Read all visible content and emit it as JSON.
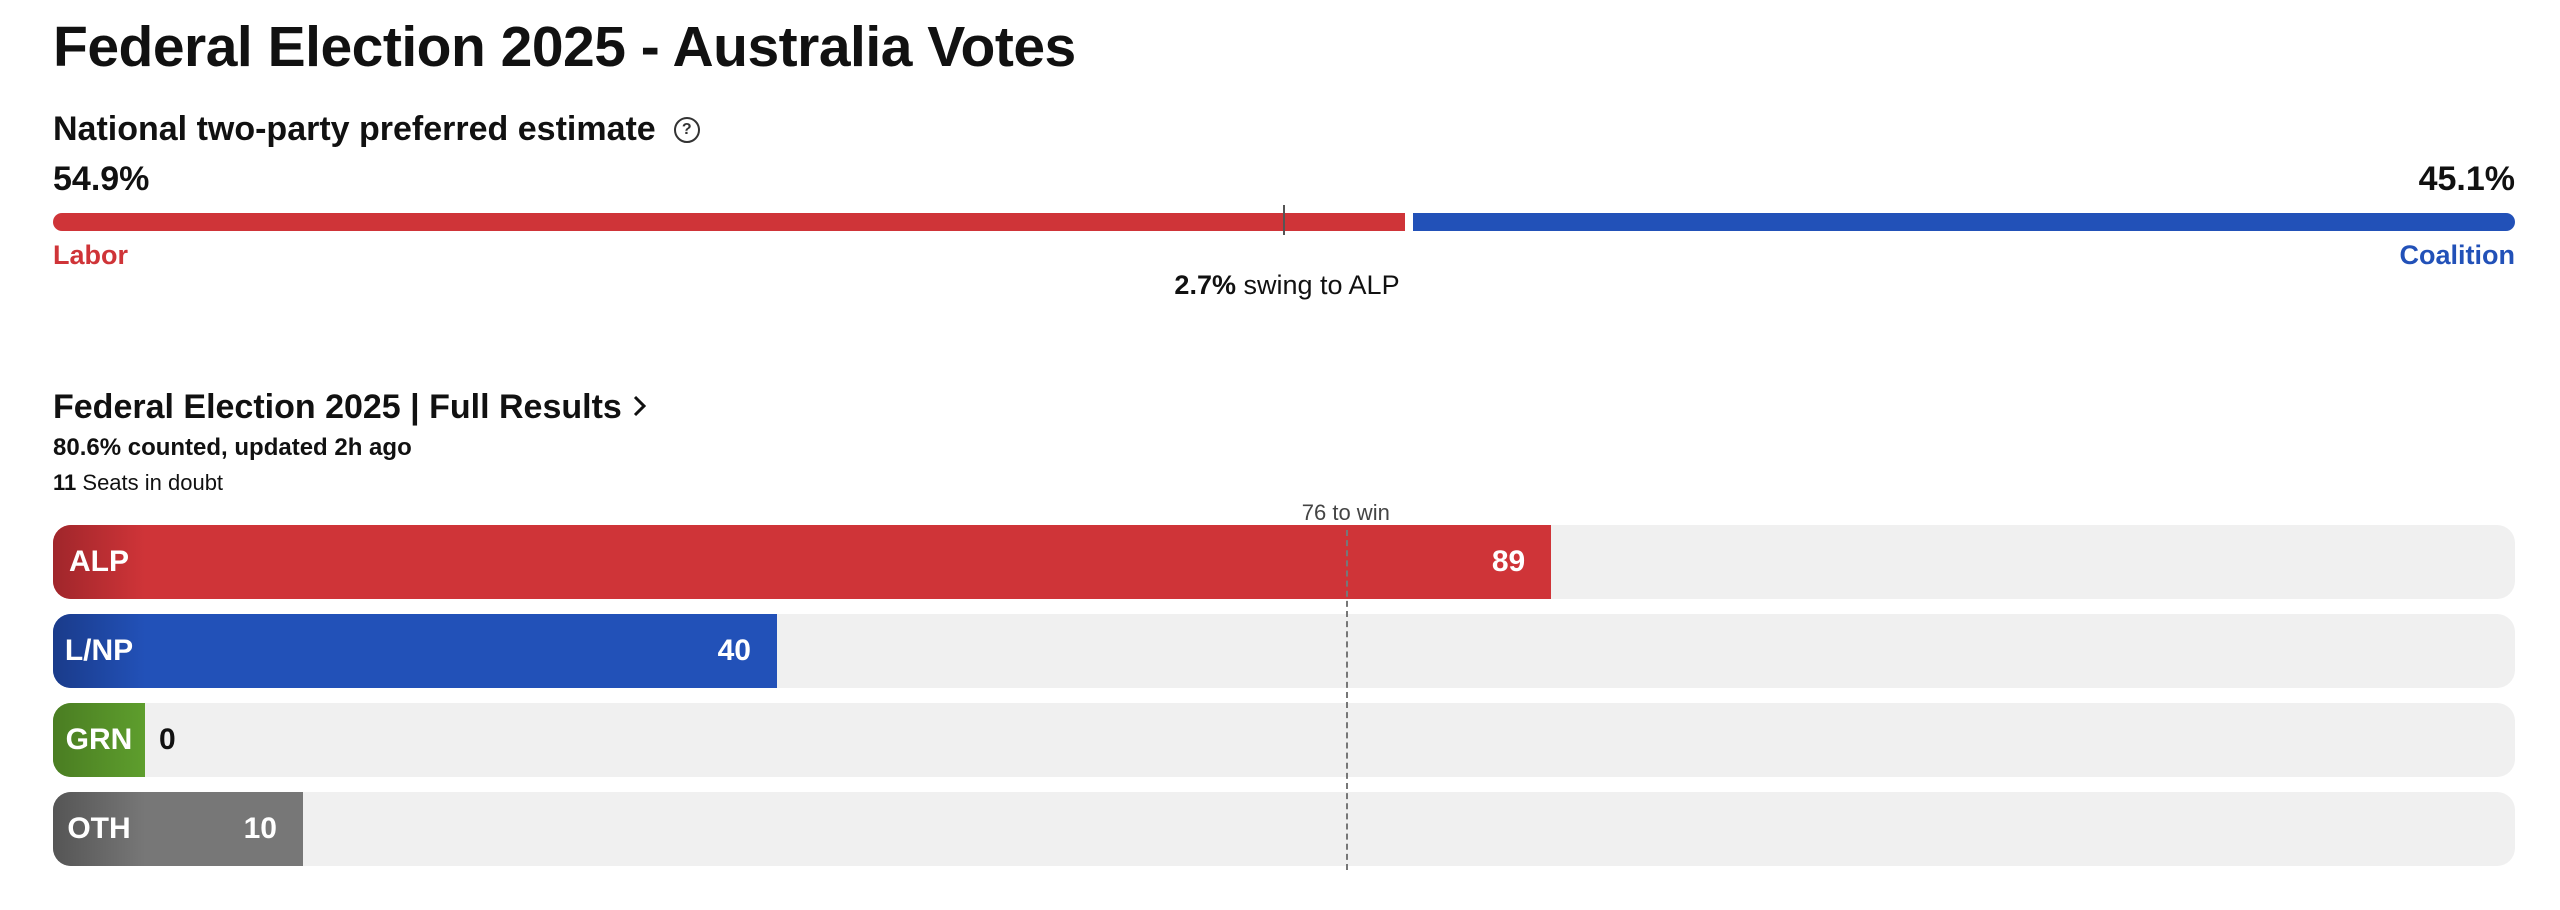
{
  "page": {
    "title": "Federal Election 2025 - Australia Votes"
  },
  "tpp": {
    "heading": "National two-party preferred estimate",
    "help_icon": "question-circle-icon",
    "left": {
      "party": "Labor",
      "value": "54.9%",
      "share": 54.9,
      "color": "#cf3438"
    },
    "right": {
      "party": "Coalition",
      "value": "45.1%",
      "share": 45.1,
      "color": "#2251b8"
    },
    "midpoint": 50,
    "swing": {
      "value": "2.7%",
      "text": "swing to ALP"
    }
  },
  "results": {
    "heading": "Federal Election 2025 | Full Results",
    "chevron_icon": "chevron-right-icon",
    "counted": "80.6% counted, updated 2h ago",
    "doubt_count": "11",
    "doubt_text": "Seats in doubt"
  },
  "chart_data": {
    "type": "bar",
    "orientation": "horizontal",
    "categories": [
      "ALP",
      "L/NP",
      "GRN",
      "OTH"
    ],
    "values": [
      89,
      40,
      0,
      10
    ],
    "colors": [
      "#cf3438",
      "#2251b8",
      "#5e9e2d",
      "#777777"
    ],
    "label_colors": [
      "#a0262b",
      "#1a3b8a",
      "#4a7d22",
      "#555555"
    ],
    "xlim": [
      0,
      150
    ],
    "majority": {
      "label": "76 to win",
      "value": 76
    }
  }
}
